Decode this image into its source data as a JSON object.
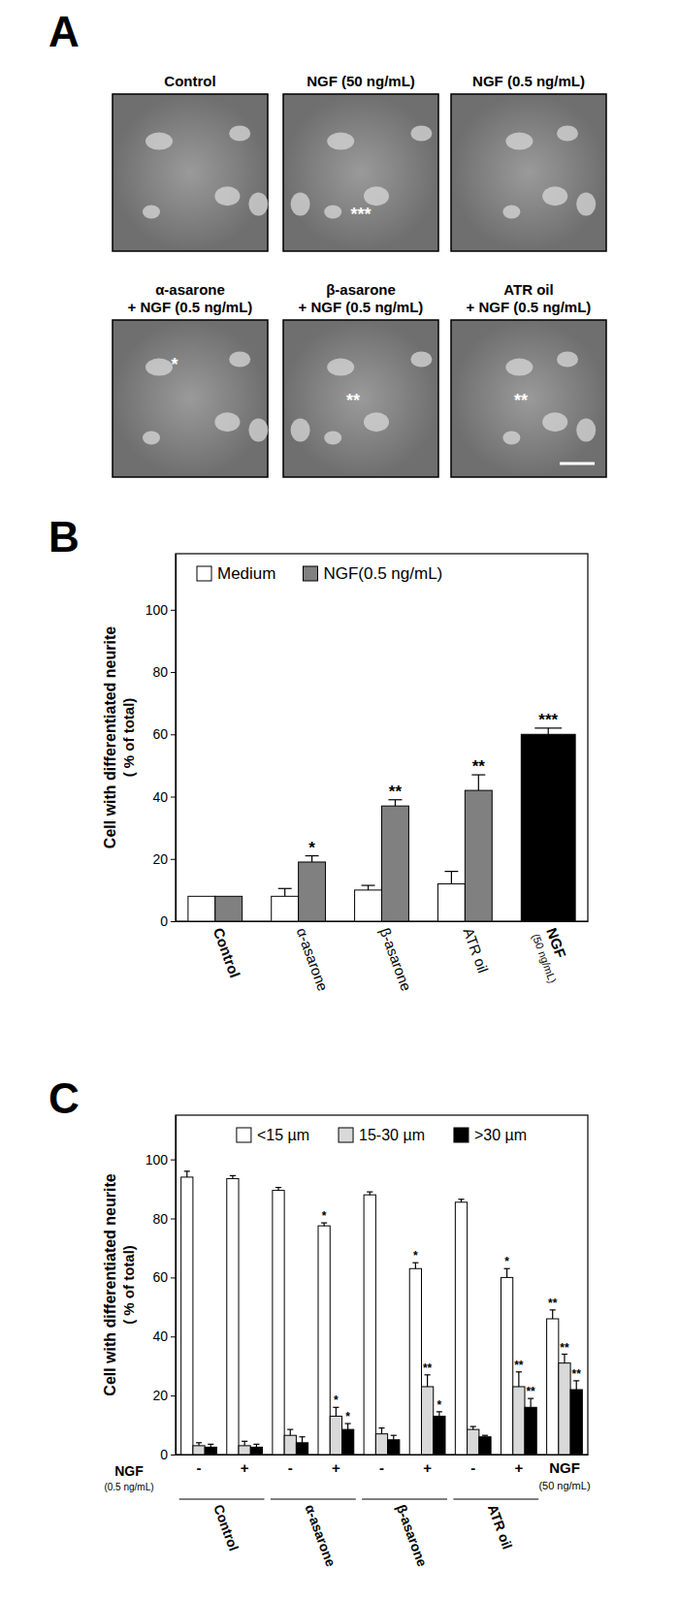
{
  "panel_a": {
    "label": "A",
    "images": [
      {
        "title": [
          "Control"
        ]
      },
      {
        "title": [
          "NGF (50 ng/mL)"
        ],
        "mark": "***"
      },
      {
        "title": [
          "NGF (0.5 ng/mL)"
        ]
      },
      {
        "title": [
          "α-asarone",
          "+ NGF (0.5 ng/mL)"
        ],
        "mark": "*"
      },
      {
        "title": [
          "β-asarone",
          "+ NGF (0.5 ng/mL)"
        ],
        "mark": "**"
      },
      {
        "title": [
          "ATR oil",
          "+ NGF (0.5 ng/mL)"
        ],
        "mark": "**"
      }
    ]
  },
  "chart_data": [
    {
      "type": "bar",
      "panel_label": "B",
      "y_label": [
        "Cell with differentiated neurite",
        "( % of total)"
      ],
      "categories": [
        "Control",
        "α-asarone",
        "β-asarone",
        "ATR oil",
        "NGF"
      ],
      "category_sublabels": [
        null,
        null,
        null,
        null,
        "(50 ng/mL)"
      ],
      "ylim": [
        0,
        118
      ],
      "yticks": [
        0,
        20,
        40,
        60,
        80,
        100
      ],
      "legend": "upper left",
      "series": [
        {
          "name": "Medium",
          "color": "#ffffff",
          "values": [
            8,
            8,
            10,
            12,
            null
          ],
          "errors": [
            null,
            2.5,
            1.5,
            4,
            null
          ]
        },
        {
          "name": "NGF(0.5 ng/mL)",
          "color": "#808080",
          "values": [
            8,
            19,
            37,
            42,
            null
          ],
          "errors": [
            null,
            2,
            2,
            5,
            null
          ],
          "annotations": [
            null,
            "*",
            "**",
            "**",
            null
          ]
        },
        {
          "color": "#000000",
          "values": [
            null,
            null,
            null,
            null,
            60
          ],
          "errors": [
            null,
            null,
            null,
            null,
            2
          ],
          "annotations": [
            null,
            null,
            null,
            null,
            "***"
          ]
        }
      ]
    },
    {
      "type": "bar",
      "panel_label": "C",
      "y_label": [
        "Cell with differentiated  neurite",
        "( % of total)"
      ],
      "categories": [
        "-",
        "+",
        "-",
        "+",
        "-",
        "+",
        "-",
        "+",
        "NGF"
      ],
      "category_sublabels": [
        null,
        null,
        null,
        null,
        null,
        null,
        null,
        null,
        "(50 ng/mL)"
      ],
      "row_label": [
        "NGF",
        "(0.5 ng/mL)"
      ],
      "groups": [
        {
          "label": "Control",
          "members": [
            0,
            1
          ]
        },
        {
          "label": "α-asarone",
          "members": [
            2,
            3
          ]
        },
        {
          "label": "β-asarone",
          "members": [
            4,
            5
          ]
        },
        {
          "label": "ATR oil",
          "members": [
            6,
            7
          ]
        }
      ],
      "ylim": [
        0,
        115
      ],
      "yticks": [
        0,
        20,
        40,
        60,
        80,
        100
      ],
      "legend": "upper center",
      "series": [
        {
          "name": "<15 µm",
          "color": "#ffffff",
          "values": [
            94,
            93.5,
            89.5,
            77.5,
            88,
            63,
            85.5,
            60,
            46
          ],
          "errors": [
            2,
            1,
            1,
            1,
            1,
            2,
            1,
            3,
            3
          ],
          "annotations": [
            null,
            null,
            null,
            "*",
            null,
            "*",
            null,
            "*",
            "**"
          ]
        },
        {
          "name": "15-30 µm",
          "color": "#d9d9d9",
          "values": [
            3,
            3,
            6.5,
            13,
            7,
            23,
            8.5,
            23,
            31
          ],
          "errors": [
            1,
            1.5,
            2,
            3,
            2,
            4,
            1,
            5,
            3
          ],
          "annotations": [
            null,
            null,
            null,
            "*",
            null,
            "**",
            null,
            "**",
            "**"
          ]
        },
        {
          "name": ">30 µm",
          "color": "#000000",
          "values": [
            2.5,
            2.5,
            4,
            8.5,
            5,
            13,
            6,
            16,
            22
          ],
          "errors": [
            1,
            1,
            2,
            2,
            1.5,
            1.5,
            0.5,
            3,
            3
          ],
          "annotations": [
            null,
            null,
            null,
            "*",
            null,
            "*",
            null,
            "**",
            "**"
          ]
        }
      ]
    }
  ]
}
